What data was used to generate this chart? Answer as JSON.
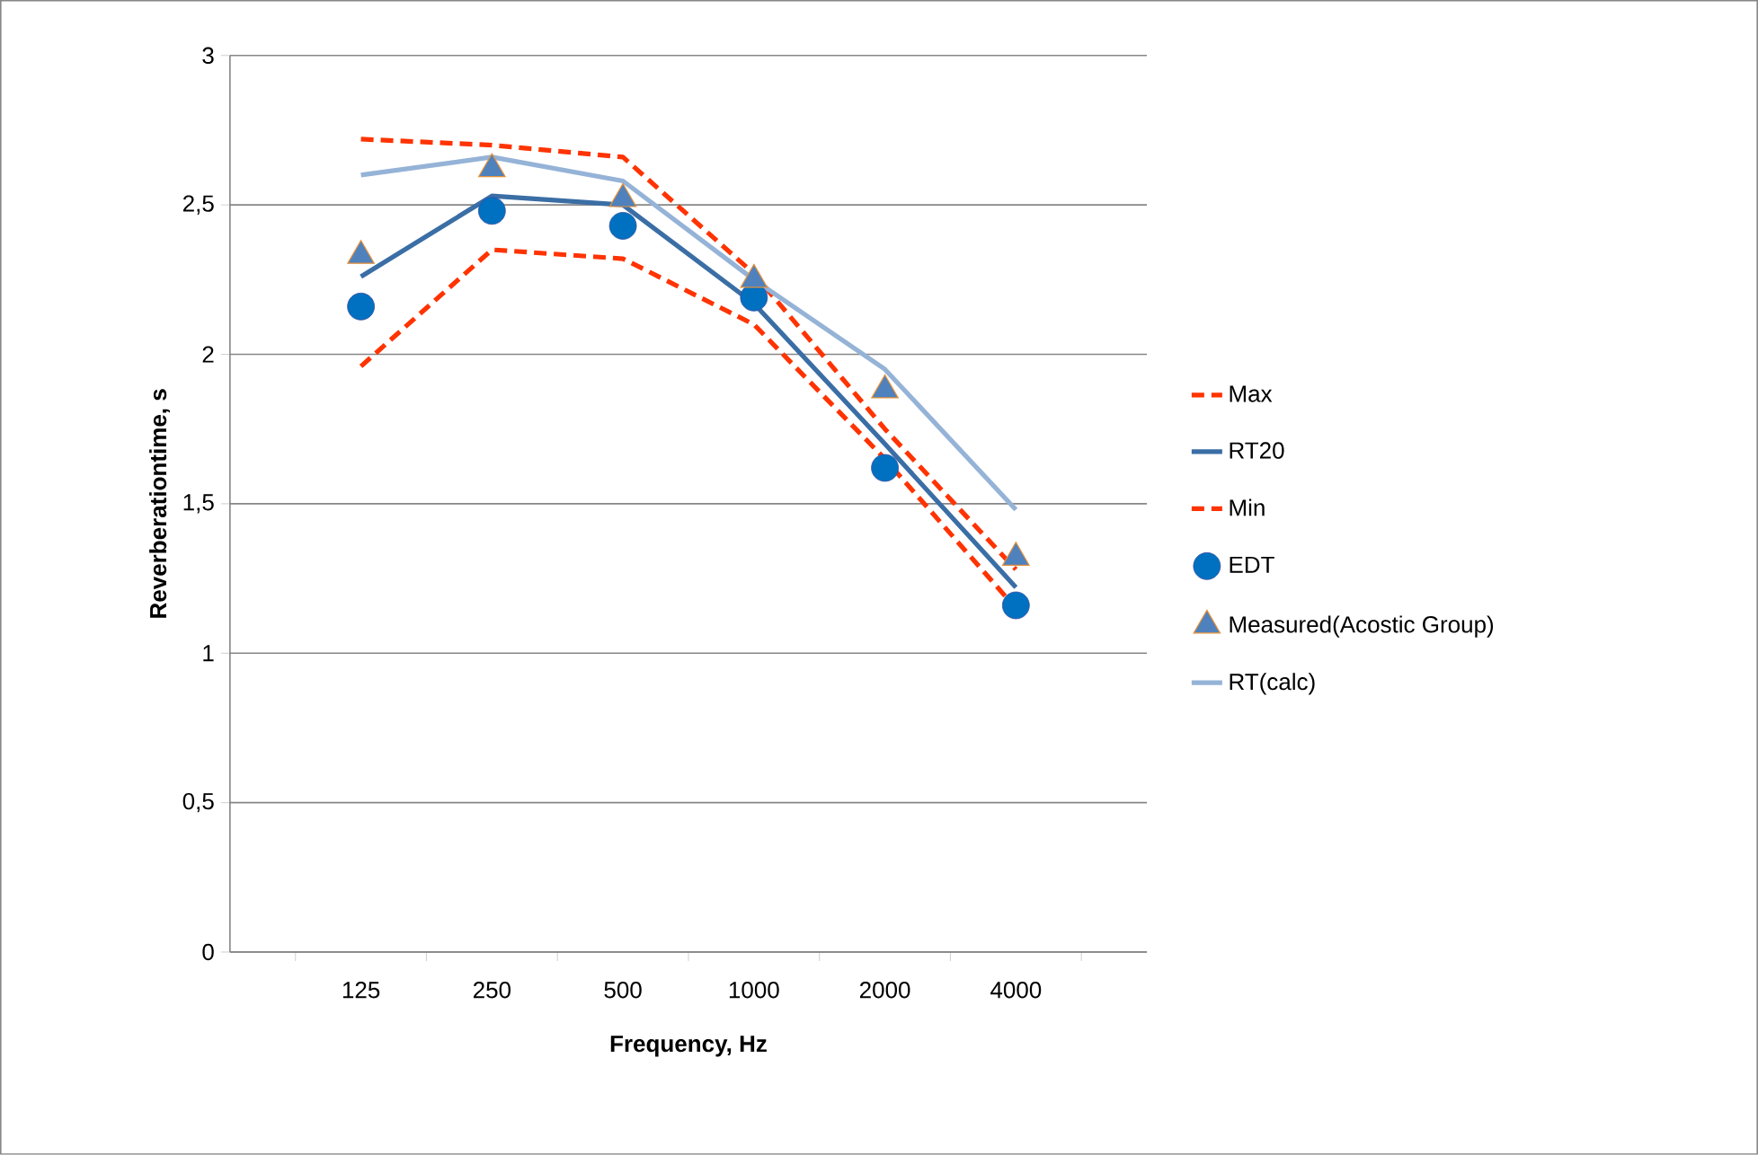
{
  "chart_data": {
    "type": "line",
    "xlabel": "Frequency, Hz",
    "ylabel": "Reverberationtime, s",
    "categories": [
      "125",
      "250",
      "500",
      "1000",
      "2000",
      "4000"
    ],
    "ylim": [
      0,
      3
    ],
    "yticks": [
      0,
      {
        "value": 0.5,
        "label": "0,5"
      },
      1,
      {
        "value": 1.5,
        "label": "1,5"
      },
      2,
      {
        "value": 2.5,
        "label": "2,5"
      },
      3
    ],
    "grid": "y",
    "legend": "right",
    "series": [
      {
        "name": "Max",
        "color": "#ff3300",
        "line_style": "dashed",
        "marker": "none",
        "values": [
          2.72,
          2.7,
          2.66,
          2.27,
          1.75,
          1.28
        ]
      },
      {
        "name": "RT20",
        "color": "#3a6ea5",
        "line_style": "solid",
        "marker": "none",
        "values": [
          2.26,
          2.53,
          2.5,
          2.17,
          1.7,
          1.22
        ]
      },
      {
        "name": "Min",
        "color": "#ff3300",
        "line_style": "dashed",
        "marker": "none",
        "values": [
          1.96,
          2.35,
          2.32,
          2.1,
          1.65,
          1.15
        ]
      },
      {
        "name": "EDT",
        "type": "scatter",
        "color": "#0070c0",
        "marker": "circle",
        "values": [
          2.16,
          2.48,
          2.43,
          2.19,
          1.62,
          1.16
        ]
      },
      {
        "name": "Measured(Acostic Group)",
        "type": "scatter",
        "color": "#4f81bd",
        "marker": "triangle",
        "values": [
          2.33,
          2.62,
          2.52,
          2.25,
          1.88,
          1.32
        ]
      },
      {
        "name": "RT(calc)",
        "color": "#95b3d7",
        "line_style": "solid",
        "marker": "none",
        "values": [
          2.6,
          2.66,
          2.58,
          2.25,
          1.95,
          1.48
        ]
      }
    ]
  }
}
